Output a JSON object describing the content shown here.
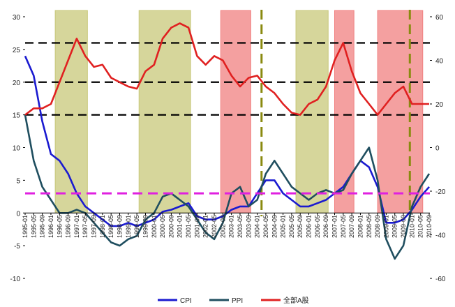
{
  "chart_data": {
    "type": "line",
    "title": "",
    "x_dates": [
      "1995-01",
      "1995-05",
      "1995-09",
      "1996-01",
      "1996-05",
      "1996-09",
      "1997-01",
      "1997-05",
      "1997-09",
      "1998-01",
      "1998-05",
      "1998-09",
      "1999-01",
      "1999-05",
      "1999-09",
      "2000-01",
      "2000-05",
      "2000-09",
      "2001-01",
      "2001-05",
      "2001-09",
      "2002-01",
      "2002-05",
      "2002-09",
      "2003-01",
      "2003-05",
      "2003-09",
      "2004-01",
      "2004-05",
      "2004-09",
      "2005-01",
      "2005-05",
      "2005-09",
      "2006-01",
      "2006-05",
      "2006-09",
      "2007-01",
      "2007-05",
      "2007-09",
      "2008-01",
      "2008-05",
      "2008-09",
      "2009-01",
      "2009-05",
      "2009-09",
      "2010-01",
      "2010-05",
      "2010-09"
    ],
    "x_tick_labels": [
      "1995-01",
      "1995-05",
      "1995-09",
      "1996-01",
      "1996-05",
      "1996-09",
      "1997-01",
      "1997-05",
      "1997-09",
      "1998-01",
      "1998-05",
      "1998-09",
      "1999-01",
      "1999-05",
      "1999-09",
      "2000-01",
      "2000-05",
      "2000-09",
      "2001-01",
      "2001-05",
      "2001-09",
      "2002-01",
      "2002-05",
      "2002-09",
      "2003-01",
      "2003-05",
      "2003-09",
      "2004-01",
      "2004-05",
      "2004-09",
      "2005-01",
      "2005-05",
      "2005-09",
      "2006-01",
      "2006-05",
      "2006-09",
      "2007-01",
      "2007-05",
      "2007-09",
      "2008-01",
      "2008-05",
      "2008-09",
      "2009-01",
      "2009-05",
      "2009-09",
      "2010-01",
      "2010-05",
      "2010-09"
    ],
    "y_left": {
      "ticks": [
        -10,
        -5,
        0,
        5,
        10,
        15,
        20,
        25,
        30
      ],
      "range": [
        -10,
        30
      ]
    },
    "y_right": {
      "ticks": [
        -60,
        -40,
        -20,
        0,
        20,
        40,
        60
      ],
      "range": [
        -60,
        60
      ]
    },
    "grid": false,
    "legend_position": "bottom",
    "series": [
      {
        "name": "CPI",
        "axis": "left",
        "color": "#1a1ad0",
        "values": [
          24,
          21,
          14,
          9,
          8,
          6,
          3,
          1,
          0,
          -1,
          -2,
          -2,
          -1.5,
          -2,
          -1.5,
          -1,
          0.2,
          0.5,
          1,
          1.5,
          -0.5,
          -1,
          -1,
          -0.5,
          0.5,
          1,
          1,
          3,
          5,
          5,
          3,
          2,
          1,
          1,
          1.5,
          2,
          3,
          4,
          6,
          8,
          7,
          4,
          -1.5,
          -1.5,
          -1,
          0.5,
          2.5,
          4
        ]
      },
      {
        "name": "PPI",
        "axis": "left",
        "color": "#1f4e5f",
        "values": [
          15,
          8,
          4,
          2,
          0,
          0,
          0.5,
          0,
          -1.5,
          -3,
          -4.5,
          -5,
          -4,
          -3.5,
          -1,
          0,
          2.5,
          3,
          2,
          1,
          -1,
          -3,
          -4,
          -1.5,
          3,
          4,
          1,
          2,
          6,
          8,
          6,
          4,
          3,
          2,
          3,
          3.5,
          3,
          3.5,
          6,
          8,
          10,
          5,
          -4,
          -7,
          -5,
          1,
          4,
          6
        ]
      },
      {
        "name": "全部A股",
        "axis": "right",
        "color": "#e02020",
        "values": [
          15,
          18,
          18,
          20,
          30,
          40,
          50,
          42,
          37,
          38,
          32,
          30,
          28,
          27,
          35,
          38,
          50,
          55,
          57,
          55,
          42,
          38,
          42,
          40,
          33,
          28,
          32,
          33,
          28,
          25,
          20,
          16,
          15,
          20,
          22,
          28,
          40,
          48,
          35,
          25,
          20,
          15,
          20,
          25,
          28,
          20,
          20,
          20
        ]
      },
      {
        "name": "",
        "axis": "left",
        "color": "#e020e0",
        "style": "dashed",
        "values": [
          3,
          3
        ]
      }
    ],
    "horizontal_reference_lines_left_axis": [
      26,
      20,
      15
    ],
    "vertical_reference_dates": [
      "2004-03",
      "2009-12"
    ],
    "shaded_periods": [
      {
        "start": "1996-03",
        "end": "1997-06",
        "color": "#c8c87a"
      },
      {
        "start": "1999-06",
        "end": "2001-06",
        "color": "#c8c87a"
      },
      {
        "start": "2002-08",
        "end": "2003-10",
        "color": "#f08080"
      },
      {
        "start": "2005-07",
        "end": "2006-10",
        "color": "#c8c87a"
      },
      {
        "start": "2007-01",
        "end": "2007-10",
        "color": "#f08080"
      },
      {
        "start": "2008-09",
        "end": "2010-06",
        "color": "#f08080"
      }
    ]
  }
}
